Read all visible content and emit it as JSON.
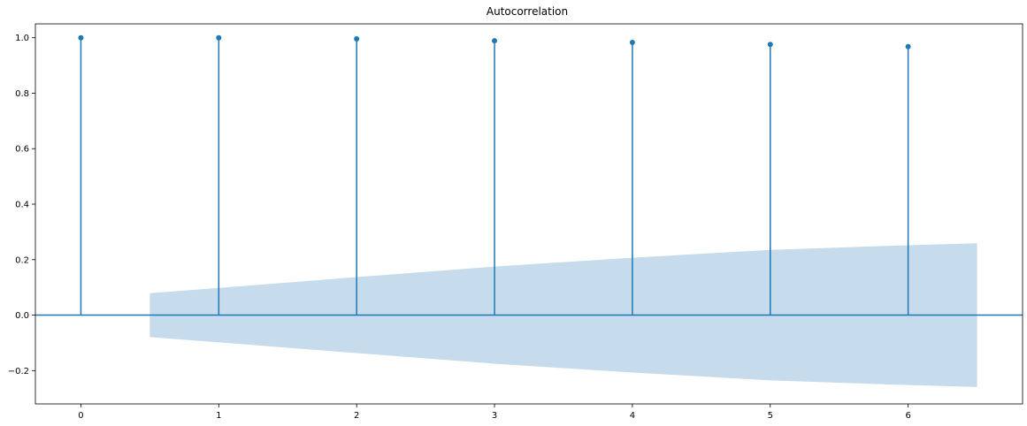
{
  "chart_data": {
    "type": "stem",
    "title": "Autocorrelation",
    "xlabel": "",
    "ylabel": "",
    "x": [
      0,
      1,
      2,
      3,
      4,
      5,
      6
    ],
    "values": [
      1.0,
      1.0,
      0.996,
      0.989,
      0.983,
      0.976,
      0.968
    ],
    "confidence_band": {
      "x": [
        0.5,
        1,
        2,
        3,
        4,
        5,
        6,
        6.5
      ],
      "upper": [
        0.079,
        0.098,
        0.137,
        0.175,
        0.207,
        0.235,
        0.252,
        0.259
      ],
      "lower": [
        -0.079,
        -0.098,
        -0.137,
        -0.175,
        -0.207,
        -0.235,
        -0.252,
        -0.259
      ]
    },
    "xlim": [
      -0.33,
      6.83
    ],
    "ylim": [
      -0.32,
      1.05
    ],
    "xticks": [
      "0",
      "1",
      "2",
      "3",
      "4",
      "5",
      "6"
    ],
    "yticks": [
      "−0.2",
      "0.0",
      "0.2",
      "0.4",
      "0.6",
      "0.8",
      "1.0"
    ],
    "grid": false,
    "colors": {
      "stem": "#1f77b4",
      "band": "#c6dbec",
      "axis": "#000000"
    }
  }
}
